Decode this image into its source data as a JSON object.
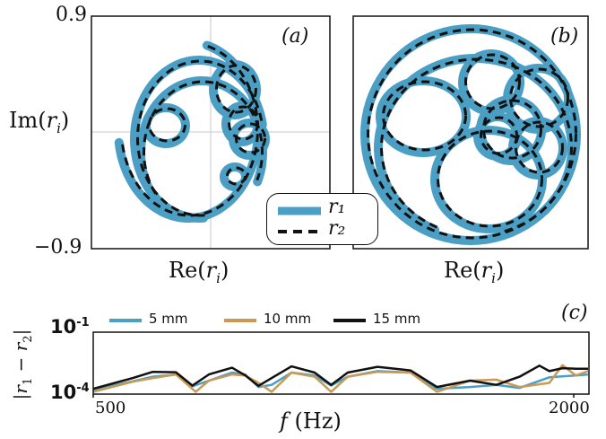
{
  "colors": {
    "r1": "#4b9fc5",
    "r2": "#111111",
    "s5": "#4b9fc5",
    "s10": "#c89a56",
    "s15": "#111111"
  },
  "panel_labels": {
    "a": "(a)",
    "b": "(b)",
    "c": "(c)"
  },
  "top_axes": {
    "y_top": "0.9",
    "y_bottom": "−0.9",
    "ylabel": "Im(rᵢ)",
    "xlabel_a": "Re(rᵢ)",
    "xlabel_b": "Re(rᵢ)"
  },
  "legend_top": {
    "r1": "r₁",
    "r2": "r₂"
  },
  "bottom_axes": {
    "y_top": "10",
    "y_top_exp": "-1",
    "y_bottom": "10",
    "y_bottom_exp": "-4",
    "x_left": "500",
    "x_right": "2000",
    "xlabel_f": "f",
    "xlabel_unit": "(Hz)",
    "ylabel": "|r₁ − r₂|"
  },
  "legend_bottom": [
    {
      "label": "5 mm",
      "color": "#4b9fc5"
    },
    {
      "label": "10 mm",
      "color": "#c89a56"
    },
    {
      "label": "15 mm",
      "color": "#111111"
    }
  ],
  "chart_data": [
    {
      "type": "scatter",
      "panel": "a",
      "xlabel": "Re(r_i)",
      "ylabel": "Im(r_i)",
      "ylim": [
        -0.9,
        0.9
      ],
      "xlim": [
        -0.9,
        0.9
      ],
      "grid": true,
      "series": [
        {
          "name": "r1",
          "style": "thick solid"
        },
        {
          "name": "r2",
          "style": "dashed"
        }
      ]
    },
    {
      "type": "scatter",
      "panel": "b",
      "xlabel": "Re(r_i)",
      "ylim": [
        -0.9,
        0.9
      ],
      "xlim": [
        -0.9,
        0.9
      ],
      "grid": false,
      "series": [
        {
          "name": "r1",
          "style": "thick solid"
        },
        {
          "name": "r2",
          "style": "dashed"
        }
      ]
    },
    {
      "type": "line",
      "panel": "c",
      "xlabel": "f (Hz)",
      "ylabel": "|r1 - r2|",
      "xlim": [
        500,
        2000
      ],
      "ylim": [
        0.0001,
        0.1
      ],
      "yscale": "log",
      "series": [
        {
          "name": "5 mm",
          "x": [
            500,
            620,
            680,
            750,
            800,
            850,
            920,
            960,
            1000,
            1040,
            1100,
            1170,
            1220,
            1270,
            1360,
            1460,
            1540,
            1640,
            1720,
            1790,
            1880,
            1960,
            2000
          ],
          "y": [
            0.00016,
            0.00042,
            0.0007,
            0.0009,
            0.00024,
            0.00045,
            0.0011,
            0.0009,
            0.00022,
            0.00028,
            0.0011,
            0.0008,
            0.00026,
            0.0007,
            0.0013,
            0.0011,
            0.00018,
            0.00022,
            0.00028,
            0.0002,
            0.00065,
            0.0008,
            0.0009
          ]
        },
        {
          "name": "10 mm",
          "x": [
            500,
            620,
            680,
            750,
            810,
            850,
            920,
            960,
            1000,
            1040,
            1100,
            1170,
            1220,
            1270,
            1360,
            1460,
            1540,
            1640,
            1720,
            1790,
            1880,
            1920,
            1960,
            2000
          ],
          "y": [
            0.00013,
            0.0004,
            0.0006,
            0.0009,
            0.00013,
            0.00045,
            0.0009,
            0.0008,
            0.00035,
            0.00013,
            0.0011,
            0.0007,
            0.00013,
            0.0007,
            0.0012,
            0.0011,
            0.00013,
            0.00045,
            0.0005,
            0.00022,
            0.00035,
            0.0025,
            0.0008,
            0.0013
          ]
        },
        {
          "name": "15 mm",
          "x": [
            500,
            620,
            680,
            750,
            800,
            850,
            920,
            960,
            1000,
            1040,
            1100,
            1170,
            1220,
            1270,
            1360,
            1460,
            1540,
            1640,
            1720,
            1790,
            1850,
            1880,
            1920,
            1960,
            2000
          ],
          "y": [
            0.00018,
            0.0006,
            0.0012,
            0.00115,
            0.00026,
            0.0009,
            0.0019,
            0.0008,
            0.00025,
            0.0006,
            0.0022,
            0.0011,
            0.00028,
            0.0011,
            0.0021,
            0.0014,
            0.00022,
            0.00045,
            0.00028,
            0.0007,
            0.0024,
            0.0013,
            0.0018,
            0.0017,
            0.0017
          ]
        }
      ]
    }
  ]
}
